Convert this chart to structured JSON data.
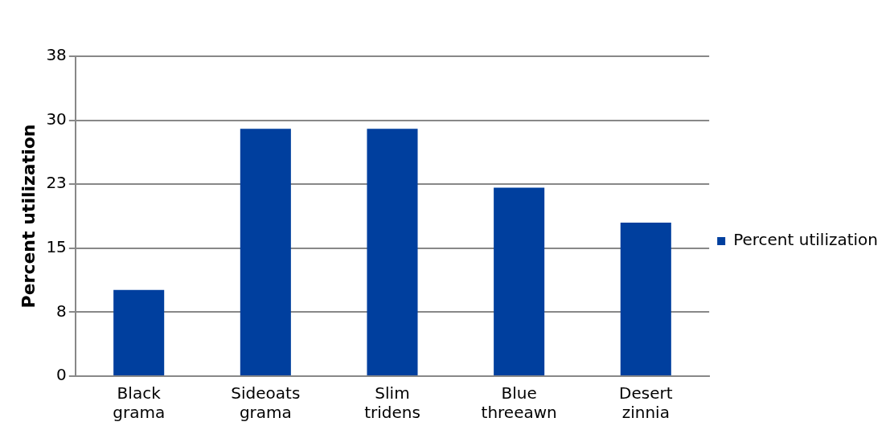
{
  "chart_data": {
    "type": "bar",
    "ylabel": "Percent utilization",
    "categories": [
      "Black grama",
      "Sideoats grama",
      "Slim tridens",
      "Blue threeawn",
      "Desert zinnia"
    ],
    "series": [
      {
        "name": "Percent utilization",
        "color": "#003f9e",
        "values": [
          10.1,
          29.0,
          29.0,
          22.1,
          18.0
        ]
      }
    ],
    "ylim": [
      0,
      37.5
    ],
    "yticks": [
      0,
      {
        "value": 7.5,
        "label": "8"
      },
      15,
      {
        "value": 22.5,
        "label": "23"
      },
      30,
      {
        "value": 37.5,
        "label": "38"
      }
    ],
    "grid": "y",
    "legend": "right"
  }
}
